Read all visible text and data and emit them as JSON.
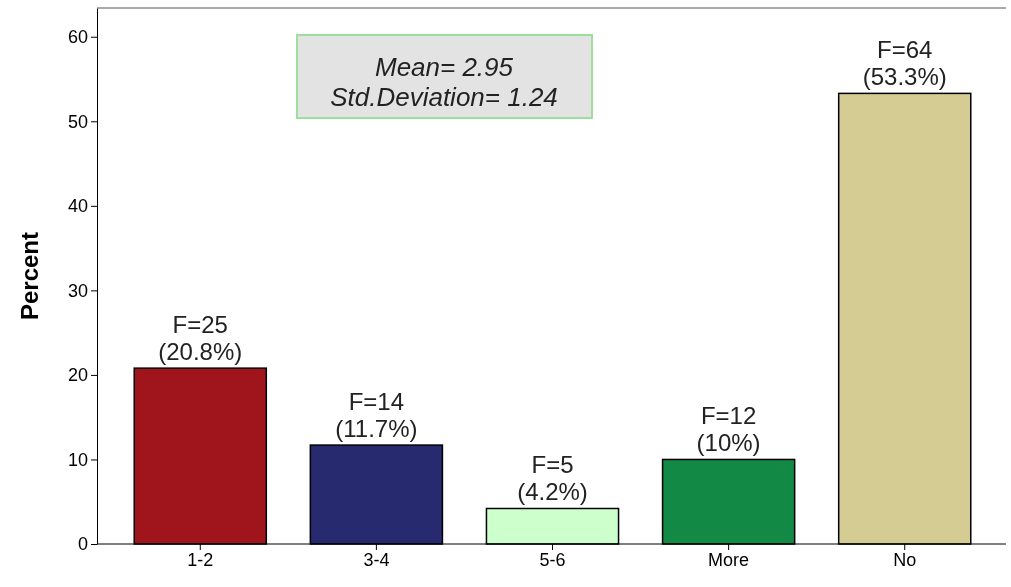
{
  "chart_data": {
    "type": "bar",
    "ylabel": "Percent",
    "categories": [
      "1-2",
      "3-4",
      "5-6",
      "More",
      "No"
    ],
    "values": [
      20.8,
      11.7,
      4.2,
      10,
      53.3
    ],
    "colors": [
      "#a0151b",
      "#272a6e",
      "#ccffcc",
      "#128a45",
      "#d4cc93"
    ],
    "value_labels": [
      "F=25\n(20.8%)",
      "F=14\n(11.7%)",
      "F=5\n(4.2%)",
      "F=12\n(10%)",
      "F=64\n(53.3%)"
    ],
    "ylim": [
      0,
      63.4
    ],
    "yticks": [
      0,
      10,
      20,
      30,
      40,
      50,
      60
    ],
    "grid": false,
    "annotations": [
      "Mean= 2.95",
      "Std.Deviation= 1.24"
    ]
  }
}
